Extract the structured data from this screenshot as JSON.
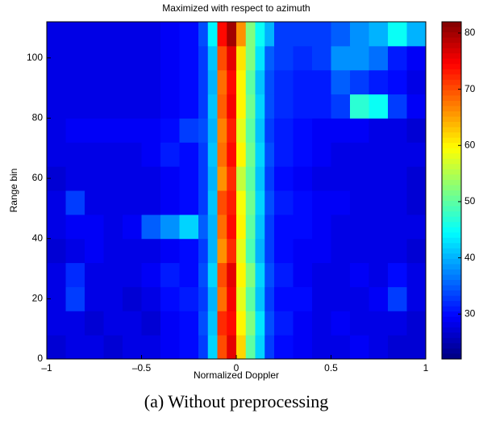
{
  "chart_data": {
    "type": "heatmap",
    "title": "Maximized with respect to azimuth",
    "xlabel": "Normalized Doppler",
    "ylabel": "Range bin",
    "caption": "(a) Without preprocessing",
    "colormap": "jet",
    "x_bins": [
      -1,
      -0.9,
      -0.8,
      -0.7,
      -0.6,
      -0.5,
      -0.4,
      -0.3,
      -0.2,
      -0.15,
      -0.1,
      -0.05,
      0,
      0.05,
      0.1,
      0.15,
      0.2,
      0.3,
      0.4,
      0.5,
      0.6,
      0.7,
      0.8,
      0.9,
      1
    ],
    "y_bins": [
      0,
      8,
      16,
      24,
      32,
      40,
      48,
      56,
      64,
      72,
      80,
      88,
      96,
      104,
      112
    ],
    "z": [
      [
        27,
        28,
        28,
        27,
        28,
        28,
        29,
        30,
        33,
        42,
        70,
        76,
        62,
        50,
        42,
        33,
        30,
        29,
        28,
        28,
        29,
        28,
        27,
        27
      ],
      [
        28,
        28,
        27,
        28,
        28,
        27,
        29,
        30,
        34,
        41,
        72,
        74,
        60,
        52,
        43,
        34,
        31,
        29,
        28,
        29,
        28,
        28,
        28,
        27
      ],
      [
        28,
        33,
        28,
        28,
        27,
        28,
        30,
        31,
        33,
        40,
        68,
        75,
        58,
        50,
        41,
        33,
        30,
        30,
        28,
        28,
        28,
        29,
        33,
        28
      ],
      [
        28,
        32,
        28,
        28,
        28,
        29,
        31,
        30,
        34,
        42,
        70,
        76,
        60,
        52,
        42,
        34,
        31,
        29,
        28,
        28,
        29,
        28,
        30,
        28
      ],
      [
        27,
        28,
        29,
        28,
        28,
        28,
        29,
        30,
        33,
        40,
        66,
        72,
        58,
        49,
        40,
        33,
        30,
        29,
        29,
        28,
        28,
        28,
        28,
        27
      ],
      [
        28,
        29,
        29,
        28,
        29,
        35,
        38,
        42,
        35,
        40,
        68,
        74,
        60,
        50,
        41,
        33,
        30,
        30,
        29,
        28,
        28,
        28,
        28,
        28
      ],
      [
        28,
        33,
        28,
        28,
        28,
        28,
        29,
        30,
        33,
        41,
        70,
        73,
        59,
        51,
        42,
        34,
        31,
        30,
        29,
        29,
        28,
        28,
        28,
        27
      ],
      [
        27,
        28,
        28,
        28,
        28,
        28,
        29,
        30,
        33,
        40,
        66,
        72,
        56,
        50,
        41,
        33,
        30,
        29,
        28,
        28,
        28,
        28,
        28,
        27
      ],
      [
        28,
        28,
        28,
        28,
        28,
        29,
        31,
        30,
        33,
        41,
        68,
        74,
        60,
        51,
        42,
        34,
        31,
        30,
        29,
        28,
        28,
        28,
        28,
        28
      ],
      [
        28,
        29,
        29,
        29,
        29,
        29,
        30,
        33,
        34,
        40,
        67,
        73,
        58,
        50,
        41,
        33,
        31,
        30,
        29,
        29,
        29,
        28,
        28,
        27
      ],
      [
        28,
        28,
        28,
        28,
        28,
        28,
        29,
        30,
        33,
        41,
        69,
        75,
        60,
        51,
        42,
        34,
        32,
        31,
        31,
        33,
        47,
        45,
        33,
        29
      ],
      [
        28,
        28,
        28,
        28,
        28,
        28,
        29,
        30,
        33,
        40,
        68,
        74,
        60,
        50,
        41,
        34,
        32,
        31,
        31,
        35,
        33,
        31,
        30,
        28
      ],
      [
        28,
        28,
        28,
        28,
        28,
        28,
        29,
        30,
        33,
        41,
        70,
        76,
        61,
        52,
        43,
        35,
        33,
        32,
        33,
        38,
        38,
        36,
        31,
        29
      ],
      [
        28,
        28,
        28,
        28,
        28,
        28,
        29,
        30,
        34,
        44,
        74,
        80,
        66,
        52,
        45,
        40,
        33,
        33,
        33,
        35,
        38,
        40,
        45,
        40
      ]
    ],
    "xlim": [
      -1,
      1
    ],
    "xticks": [
      {
        "value": -1,
        "label": "–1"
      },
      {
        "value": -0.5,
        "label": "–0.5"
      },
      0,
      0.5,
      1
    ],
    "ylim": [
      0,
      112
    ],
    "yticks": [
      0,
      20,
      40,
      60,
      80,
      100
    ],
    "clim": [
      22,
      82
    ],
    "cticks": [
      30,
      40,
      50,
      60,
      70,
      80
    ]
  }
}
